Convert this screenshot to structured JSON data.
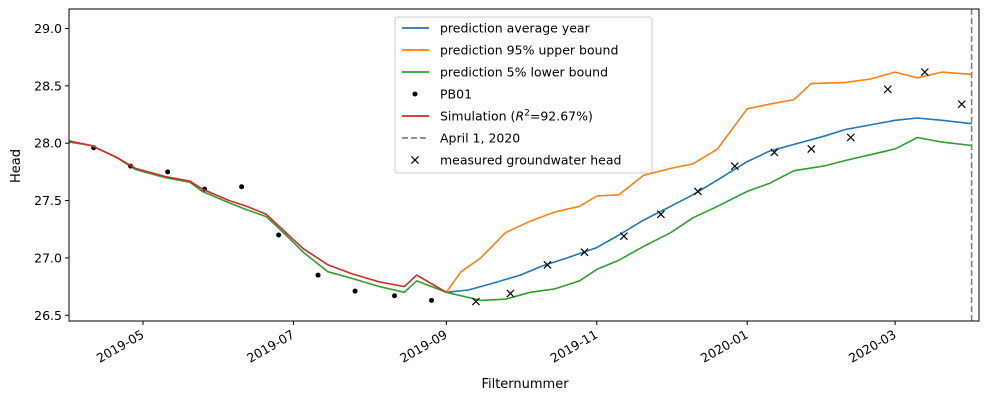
{
  "chart_data": {
    "type": "line",
    "title": "",
    "xlabel": "Filternummer",
    "ylabel": "Head",
    "xlim": [
      "2019-04-01",
      "2020-04-04"
    ],
    "ylim": [
      26.45,
      29.17
    ],
    "x_ticks": [
      "2019-05-01",
      "2019-07-01",
      "2019-09-01",
      "2019-11-01",
      "2020-01-01",
      "2020-03-01"
    ],
    "x_tick_labels": [
      "2019-05",
      "2019-07",
      "2019-09",
      "2019-11",
      "2020-01",
      "2020-03"
    ],
    "y_ticks": [
      26.5,
      27.0,
      27.5,
      28.0,
      28.5,
      29.0
    ],
    "y_tick_labels": [
      "26.5",
      "27.0",
      "27.5",
      "28.0",
      "28.5",
      "29.0"
    ],
    "grid": false,
    "legend_position": "upper-center",
    "series": [
      {
        "name": "prediction average year",
        "color": "#1f77b4",
        "style": "line",
        "points": [
          [
            "2019-09-01",
            26.7
          ],
          [
            "2019-09-10",
            26.72
          ],
          [
            "2019-09-20",
            26.78
          ],
          [
            "2019-10-01",
            26.85
          ],
          [
            "2019-10-10",
            26.93
          ],
          [
            "2019-10-20",
            27.0
          ],
          [
            "2019-11-01",
            27.09
          ],
          [
            "2019-11-10",
            27.2
          ],
          [
            "2019-11-20",
            27.33
          ],
          [
            "2019-12-01",
            27.45
          ],
          [
            "2019-12-10",
            27.55
          ],
          [
            "2019-12-20",
            27.68
          ],
          [
            "2020-01-01",
            27.84
          ],
          [
            "2020-01-10",
            27.93
          ],
          [
            "2020-01-20",
            27.99
          ],
          [
            "2020-02-01",
            28.06
          ],
          [
            "2020-02-10",
            28.12
          ],
          [
            "2020-02-20",
            28.16
          ],
          [
            "2020-03-01",
            28.2
          ],
          [
            "2020-03-10",
            28.22
          ],
          [
            "2020-03-20",
            28.2
          ],
          [
            "2020-04-01",
            28.17
          ]
        ]
      },
      {
        "name": "prediction 95% upper bound",
        "color": "#ff7f0e",
        "style": "line",
        "points": [
          [
            "2019-09-01",
            26.7
          ],
          [
            "2019-09-07",
            26.88
          ],
          [
            "2019-09-15",
            27.0
          ],
          [
            "2019-09-25",
            27.22
          ],
          [
            "2019-10-05",
            27.32
          ],
          [
            "2019-10-15",
            27.4
          ],
          [
            "2019-10-25",
            27.45
          ],
          [
            "2019-11-01",
            27.54
          ],
          [
            "2019-11-10",
            27.55
          ],
          [
            "2019-11-20",
            27.72
          ],
          [
            "2019-12-01",
            27.78
          ],
          [
            "2019-12-10",
            27.82
          ],
          [
            "2019-12-20",
            27.95
          ],
          [
            "2020-01-01",
            28.3
          ],
          [
            "2020-01-10",
            28.34
          ],
          [
            "2020-01-20",
            28.38
          ],
          [
            "2020-01-27",
            28.52
          ],
          [
            "2020-02-10",
            28.53
          ],
          [
            "2020-02-20",
            28.56
          ],
          [
            "2020-03-01",
            28.62
          ],
          [
            "2020-03-10",
            28.57
          ],
          [
            "2020-03-20",
            28.62
          ],
          [
            "2020-04-01",
            28.6
          ]
        ]
      },
      {
        "name": "prediction 5% lower bound",
        "color": "#2ca02c",
        "style": "line",
        "points": [
          [
            "2019-04-01",
            28.01
          ],
          [
            "2019-04-10",
            27.98
          ],
          [
            "2019-04-20",
            27.88
          ],
          [
            "2019-04-28",
            27.77
          ],
          [
            "2019-05-10",
            27.7
          ],
          [
            "2019-05-20",
            27.66
          ],
          [
            "2019-05-25",
            27.58
          ],
          [
            "2019-06-05",
            27.48
          ],
          [
            "2019-06-12",
            27.42
          ],
          [
            "2019-06-20",
            27.36
          ],
          [
            "2019-06-28",
            27.2
          ],
          [
            "2019-07-05",
            27.05
          ],
          [
            "2019-07-15",
            26.88
          ],
          [
            "2019-07-25",
            26.82
          ],
          [
            "2019-08-05",
            26.75
          ],
          [
            "2019-08-15",
            26.7
          ],
          [
            "2019-08-20",
            26.8
          ],
          [
            "2019-09-01",
            26.7
          ],
          [
            "2019-09-15",
            26.63
          ],
          [
            "2019-09-25",
            26.64
          ],
          [
            "2019-10-05",
            26.7
          ],
          [
            "2019-10-15",
            26.73
          ],
          [
            "2019-10-25",
            26.8
          ],
          [
            "2019-11-01",
            26.9
          ],
          [
            "2019-11-10",
            26.98
          ],
          [
            "2019-11-20",
            27.1
          ],
          [
            "2019-12-01",
            27.22
          ],
          [
            "2019-12-10",
            27.35
          ],
          [
            "2019-12-20",
            27.45
          ],
          [
            "2020-01-01",
            27.58
          ],
          [
            "2020-01-10",
            27.65
          ],
          [
            "2020-01-20",
            27.76
          ],
          [
            "2020-02-01",
            27.8
          ],
          [
            "2020-02-10",
            27.85
          ],
          [
            "2020-02-20",
            27.9
          ],
          [
            "2020-03-01",
            27.95
          ],
          [
            "2020-03-10",
            28.05
          ],
          [
            "2020-03-20",
            28.01
          ],
          [
            "2020-04-01",
            27.98
          ]
        ]
      },
      {
        "name": "PB01",
        "color": "#000000",
        "style": "dot",
        "points": [
          [
            "2019-04-11",
            27.96
          ],
          [
            "2019-04-26",
            27.8
          ],
          [
            "2019-05-11",
            27.75
          ],
          [
            "2019-05-26",
            27.6
          ],
          [
            "2019-06-10",
            27.62
          ],
          [
            "2019-06-25",
            27.2
          ],
          [
            "2019-07-11",
            26.85
          ],
          [
            "2019-07-26",
            26.71
          ],
          [
            "2019-08-11",
            26.67
          ],
          [
            "2019-08-26",
            26.63
          ]
        ]
      },
      {
        "name": "Simulation ($R^2$=92.67%)",
        "color": "#d62728",
        "style": "line",
        "points": [
          [
            "2019-04-01",
            28.02
          ],
          [
            "2019-04-10",
            27.98
          ],
          [
            "2019-04-20",
            27.88
          ],
          [
            "2019-04-28",
            27.78
          ],
          [
            "2019-05-10",
            27.71
          ],
          [
            "2019-05-20",
            27.67
          ],
          [
            "2019-05-25",
            27.6
          ],
          [
            "2019-06-05",
            27.5
          ],
          [
            "2019-06-12",
            27.45
          ],
          [
            "2019-06-20",
            27.38
          ],
          [
            "2019-06-28",
            27.22
          ],
          [
            "2019-07-05",
            27.08
          ],
          [
            "2019-07-15",
            26.94
          ],
          [
            "2019-07-25",
            26.86
          ],
          [
            "2019-08-05",
            26.79
          ],
          [
            "2019-08-15",
            26.75
          ],
          [
            "2019-08-20",
            26.85
          ],
          [
            "2019-09-01",
            26.7
          ]
        ]
      },
      {
        "name": "measured groundwater head",
        "color": "#000000",
        "style": "x",
        "points": [
          [
            "2019-09-13",
            26.62
          ],
          [
            "2019-09-27",
            26.69
          ],
          [
            "2019-10-12",
            26.94
          ],
          [
            "2019-10-27",
            27.05
          ],
          [
            "2019-11-12",
            27.19
          ],
          [
            "2019-11-27",
            27.38
          ],
          [
            "2019-12-12",
            27.58
          ],
          [
            "2019-12-27",
            27.8
          ],
          [
            "2020-01-12",
            27.92
          ],
          [
            "2020-01-27",
            27.95
          ],
          [
            "2020-02-12",
            28.05
          ],
          [
            "2020-02-27",
            28.47
          ],
          [
            "2020-03-13",
            28.62
          ],
          [
            "2020-03-28",
            28.34
          ]
        ]
      },
      {
        "name": "April 1, 2020",
        "color": "#808080",
        "style": "vline",
        "x": "2020-04-01"
      }
    ]
  },
  "legend": {
    "items": [
      {
        "label": "prediction average year",
        "color": "#1f77b4",
        "marker": "line"
      },
      {
        "label": "prediction 95% upper bound",
        "color": "#ff7f0e",
        "marker": "line"
      },
      {
        "label": "prediction 5% lower bound",
        "color": "#2ca02c",
        "marker": "line"
      },
      {
        "label": "PB01",
        "color": "#000000",
        "marker": "dot"
      },
      {
        "label": "Simulation (",
        "label_sup_base": "R",
        "label_sup": "2",
        "label_tail": "=92.67%)",
        "color": "#d62728",
        "marker": "line"
      },
      {
        "label": "April 1, 2020",
        "color": "#808080",
        "marker": "dashed"
      },
      {
        "label": "measured groundwater head",
        "color": "#000000",
        "marker": "x"
      }
    ]
  }
}
